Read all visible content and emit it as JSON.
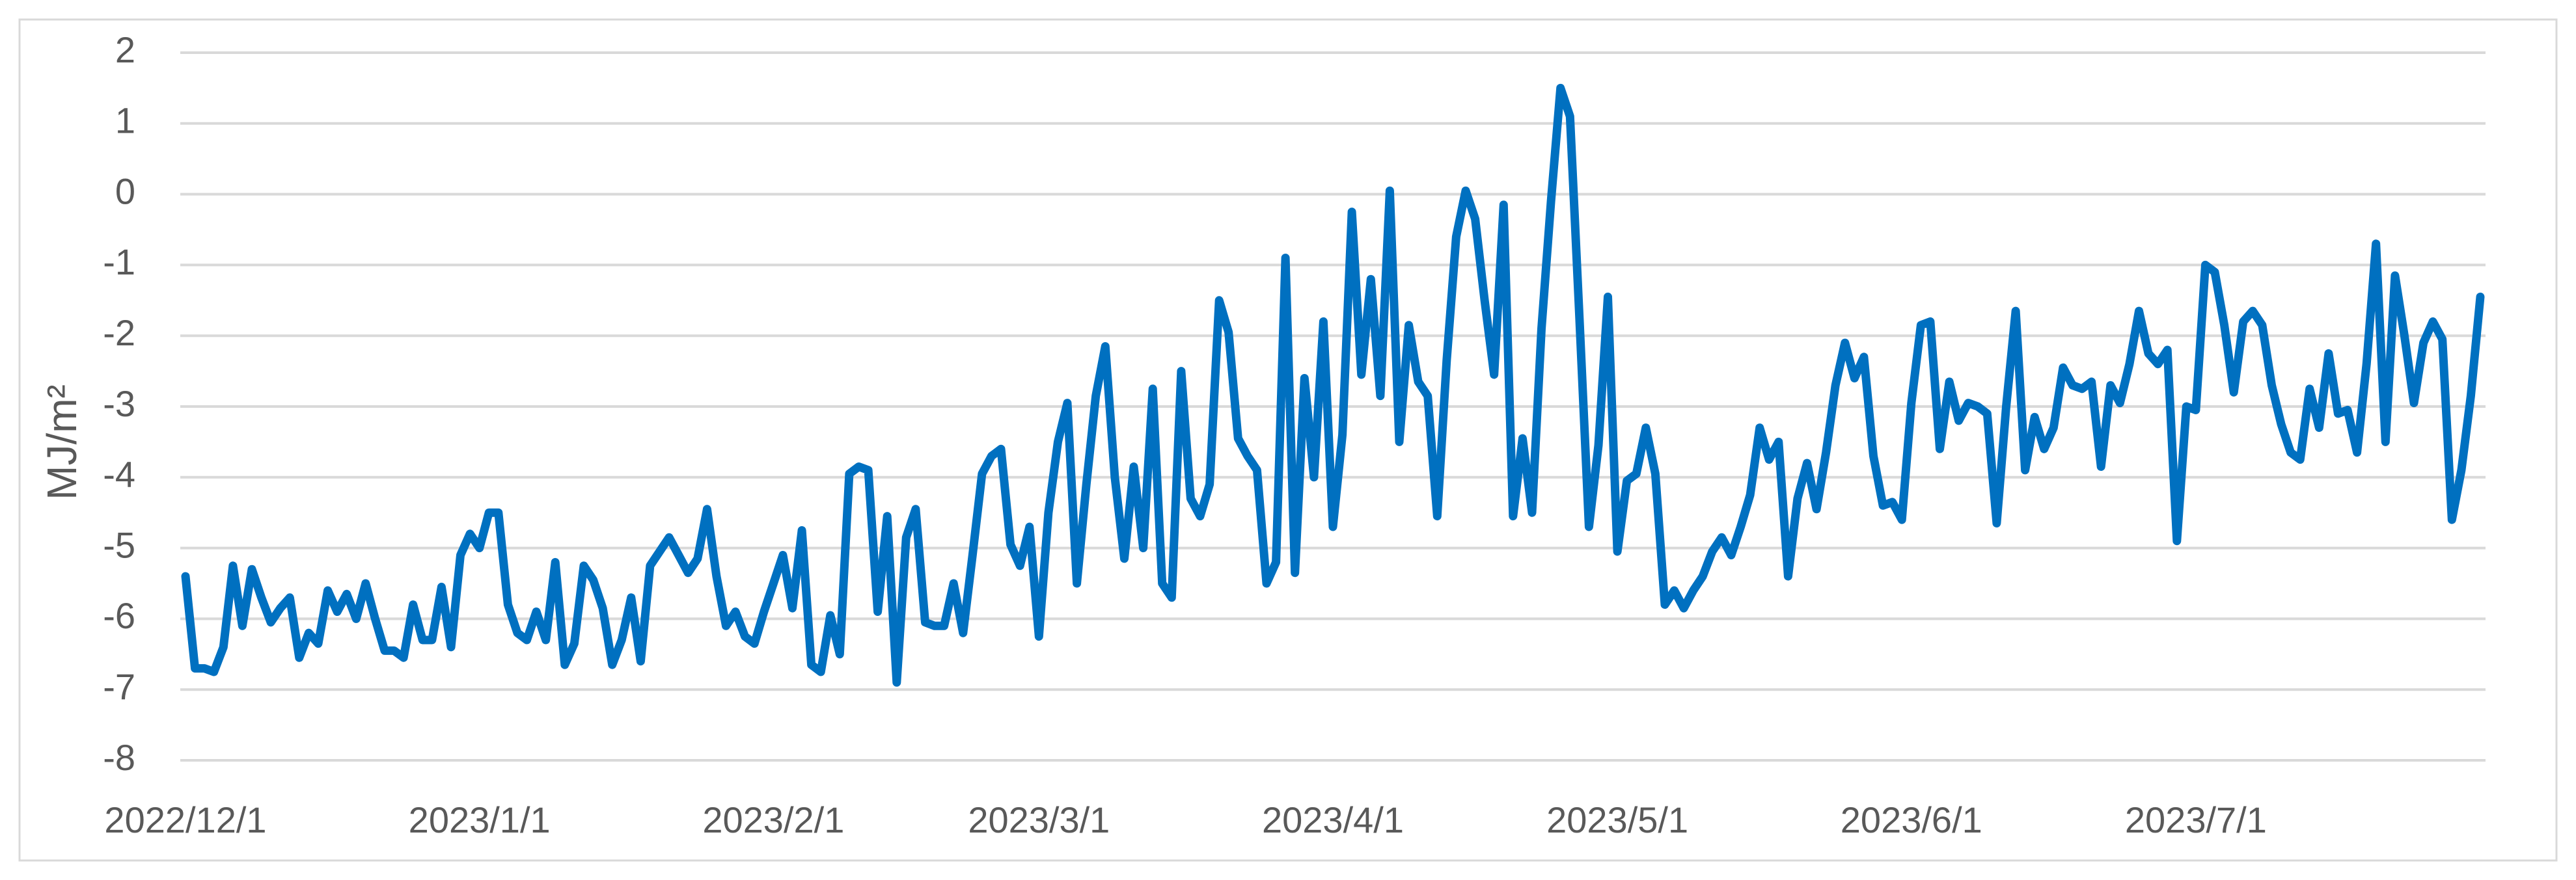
{
  "chart_data": {
    "type": "line",
    "ylabel": "MJ/m²",
    "x": [
      "2022/12/1",
      "2022/12/2",
      "2022/12/3",
      "2022/12/4",
      "2022/12/5",
      "2022/12/6",
      "2022/12/7",
      "2022/12/8",
      "2022/12/9",
      "2022/12/10",
      "2022/12/11",
      "2022/12/12",
      "2022/12/13",
      "2022/12/14",
      "2022/12/15",
      "2022/12/16",
      "2022/12/17",
      "2022/12/18",
      "2022/12/19",
      "2022/12/20",
      "2022/12/21",
      "2022/12/22",
      "2022/12/23",
      "2022/12/24",
      "2022/12/25",
      "2022/12/26",
      "2022/12/27",
      "2022/12/28",
      "2022/12/29",
      "2022/12/30",
      "2022/12/31",
      "2023/1/1",
      "2023/1/2",
      "2023/1/3",
      "2023/1/4",
      "2023/1/5",
      "2023/1/6",
      "2023/1/7",
      "2023/1/8",
      "2023/1/9",
      "2023/1/10",
      "2023/1/11",
      "2023/1/12",
      "2023/1/13",
      "2023/1/14",
      "2023/1/15",
      "2023/1/16",
      "2023/1/17",
      "2023/1/18",
      "2023/1/19",
      "2023/1/20",
      "2023/1/21",
      "2023/1/22",
      "2023/1/23",
      "2023/1/24",
      "2023/1/25",
      "2023/1/26",
      "2023/1/27",
      "2023/1/28",
      "2023/1/29",
      "2023/1/30",
      "2023/1/31",
      "2023/2/1",
      "2023/2/2",
      "2023/2/3",
      "2023/2/4",
      "2023/2/5",
      "2023/2/6",
      "2023/2/7",
      "2023/2/8",
      "2023/2/9",
      "2023/2/10",
      "2023/2/11",
      "2023/2/12",
      "2023/2/13",
      "2023/2/14",
      "2023/2/15",
      "2023/2/16",
      "2023/2/17",
      "2023/2/18",
      "2023/2/19",
      "2023/2/20",
      "2023/2/21",
      "2023/2/22",
      "2023/2/23",
      "2023/2/24",
      "2023/2/25",
      "2023/2/26",
      "2023/2/27",
      "2023/2/28",
      "2023/3/1",
      "2023/3/2",
      "2023/3/3",
      "2023/3/4",
      "2023/3/5",
      "2023/3/6",
      "2023/3/7",
      "2023/3/8",
      "2023/3/9",
      "2023/3/10",
      "2023/3/11",
      "2023/3/12",
      "2023/3/13",
      "2023/3/14",
      "2023/3/15",
      "2023/3/16",
      "2023/3/17",
      "2023/3/18",
      "2023/3/19",
      "2023/3/20",
      "2023/3/21",
      "2023/3/22",
      "2023/3/23",
      "2023/3/24",
      "2023/3/25",
      "2023/3/26",
      "2023/3/27",
      "2023/3/28",
      "2023/3/29",
      "2023/3/30",
      "2023/3/31",
      "2023/4/1",
      "2023/4/2",
      "2023/4/3",
      "2023/4/4",
      "2023/4/5",
      "2023/4/6",
      "2023/4/7",
      "2023/4/8",
      "2023/4/9",
      "2023/4/10",
      "2023/4/11",
      "2023/4/12",
      "2023/4/13",
      "2023/4/14",
      "2023/4/15",
      "2023/4/16",
      "2023/4/17",
      "2023/4/18",
      "2023/4/19",
      "2023/4/20",
      "2023/4/21",
      "2023/4/22",
      "2023/4/23",
      "2023/4/24",
      "2023/4/25",
      "2023/4/26",
      "2023/4/27",
      "2023/4/28",
      "2023/4/29",
      "2023/4/30",
      "2023/5/1",
      "2023/5/2",
      "2023/5/3",
      "2023/5/4",
      "2023/5/5",
      "2023/5/6",
      "2023/5/7",
      "2023/5/8",
      "2023/5/9",
      "2023/5/10",
      "2023/5/11",
      "2023/5/12",
      "2023/5/13",
      "2023/5/14",
      "2023/5/15",
      "2023/5/16",
      "2023/5/17",
      "2023/5/18",
      "2023/5/19",
      "2023/5/20",
      "2023/5/21",
      "2023/5/22",
      "2023/5/23",
      "2023/5/24",
      "2023/5/25",
      "2023/5/26",
      "2023/5/27",
      "2023/5/28",
      "2023/5/29",
      "2023/5/30",
      "2023/5/31",
      "2023/6/1",
      "2023/6/2",
      "2023/6/3",
      "2023/6/4",
      "2023/6/5",
      "2023/6/6",
      "2023/6/7",
      "2023/6/8",
      "2023/6/9",
      "2023/6/10",
      "2023/6/11",
      "2023/6/12",
      "2023/6/13",
      "2023/6/14",
      "2023/6/15",
      "2023/6/16",
      "2023/6/17",
      "2023/6/18",
      "2023/6/19",
      "2023/6/20",
      "2023/6/21",
      "2023/6/22",
      "2023/6/23",
      "2023/6/24",
      "2023/6/25",
      "2023/6/26",
      "2023/6/27",
      "2023/6/28",
      "2023/6/29",
      "2023/6/30",
      "2023/7/1",
      "2023/7/2",
      "2023/7/3",
      "2023/7/4",
      "2023/7/5",
      "2023/7/6",
      "2023/7/7",
      "2023/7/8",
      "2023/7/9",
      "2023/7/10",
      "2023/7/11",
      "2023/7/12",
      "2023/7/13",
      "2023/7/14",
      "2023/7/15",
      "2023/7/16",
      "2023/7/17",
      "2023/7/18",
      "2023/7/19",
      "2023/7/20",
      "2023/7/21",
      "2023/7/22",
      "2023/7/23",
      "2023/7/24",
      "2023/7/25",
      "2023/7/26",
      "2023/7/27",
      "2023/7/28",
      "2023/7/29",
      "2023/7/30",
      "2023/7/31"
    ],
    "values": [
      -5.4,
      -6.7,
      -6.7,
      -6.75,
      -6.4,
      -5.25,
      -6.1,
      -5.3,
      -5.7,
      -6.05,
      -5.85,
      -5.7,
      -6.55,
      -6.2,
      -6.35,
      -5.6,
      -5.9,
      -5.65,
      -6.0,
      -5.5,
      -6.0,
      -6.45,
      -6.45,
      -6.55,
      -5.8,
      -6.3,
      -6.3,
      -5.55,
      -6.4,
      -5.1,
      -4.8,
      -5.0,
      -4.5,
      -4.5,
      -5.8,
      -6.2,
      -6.3,
      -5.9,
      -6.3,
      -5.2,
      -6.65,
      -6.35,
      -5.25,
      -5.45,
      -5.85,
      -6.65,
      -6.3,
      -5.7,
      -6.6,
      -5.25,
      -5.05,
      -4.85,
      -5.1,
      -5.35,
      -5.15,
      -4.45,
      -5.4,
      -6.1,
      -5.9,
      -6.25,
      -6.35,
      -5.9,
      -5.5,
      -5.1,
      -5.85,
      -4.75,
      -6.65,
      -6.75,
      -5.95,
      -6.5,
      -3.95,
      -3.85,
      -3.9,
      -5.9,
      -4.55,
      -6.9,
      -4.85,
      -4.45,
      -6.05,
      -6.1,
      -6.1,
      -5.5,
      -6.2,
      -5.1,
      -3.95,
      -3.7,
      -3.6,
      -4.95,
      -5.25,
      -4.7,
      -6.25,
      -4.5,
      -3.5,
      -2.95,
      -5.5,
      -4.1,
      -2.85,
      -2.15,
      -4.0,
      -5.15,
      -3.85,
      -5.0,
      -2.75,
      -5.5,
      -5.7,
      -2.5,
      -4.3,
      -4.55,
      -4.1,
      -1.5,
      -1.95,
      -3.45,
      -3.7,
      -3.9,
      -5.5,
      -5.2,
      -0.9,
      -5.35,
      -2.6,
      -4.0,
      -1.8,
      -4.7,
      -3.4,
      -0.25,
      -2.55,
      -1.2,
      -2.85,
      0.05,
      -3.5,
      -1.85,
      -2.65,
      -2.85,
      -4.55,
      -2.35,
      -0.6,
      0.05,
      -0.35,
      -1.5,
      -2.55,
      -0.15,
      -4.55,
      -3.45,
      -4.5,
      -1.9,
      -0.1,
      1.5,
      1.1,
      -1.75,
      -4.7,
      -3.55,
      -1.45,
      -5.05,
      -4.05,
      -3.95,
      -3.3,
      -3.95,
      -5.8,
      -5.6,
      -5.85,
      -5.6,
      -5.4,
      -5.05,
      -4.85,
      -5.1,
      -4.7,
      -4.25,
      -3.3,
      -3.75,
      -3.5,
      -5.4,
      -4.3,
      -3.8,
      -4.45,
      -3.65,
      -2.7,
      -2.1,
      -2.6,
      -2.3,
      -3.7,
      -4.4,
      -4.35,
      -4.6,
      -2.95,
      -1.85,
      -1.8,
      -3.6,
      -2.65,
      -3.2,
      -2.95,
      -3.0,
      -3.1,
      -4.65,
      -3.0,
      -1.65,
      -3.9,
      -3.15,
      -3.6,
      -3.3,
      -2.45,
      -2.7,
      -2.75,
      -2.65,
      -3.85,
      -2.7,
      -2.95,
      -2.4,
      -1.65,
      -2.25,
      -2.4,
      -2.2,
      -4.9,
      -3.0,
      -3.05,
      -1.0,
      -1.1,
      -1.85,
      -2.8,
      -1.8,
      -1.65,
      -1.85,
      -2.7,
      -3.25,
      -3.65,
      -3.75,
      -2.75,
      -3.3,
      -2.25,
      -3.1,
      -3.05,
      -3.65,
      -2.4,
      -0.7,
      -3.5,
      -1.15,
      -2.0,
      -2.95,
      -2.1,
      -1.8,
      -2.05,
      -4.6,
      -3.9,
      -2.85,
      -1.45
    ],
    "color": "#0070c0",
    "xlim": [
      "2022/12/1",
      "2023/7/31"
    ],
    "xticks": [
      "2022/12/1",
      "2023/1/1",
      "2023/2/1",
      "2023/3/1",
      "2023/4/1",
      "2023/5/1",
      "2023/6/1",
      "2023/7/1"
    ],
    "ylim": [
      -8,
      2
    ],
    "yticks": [
      -8,
      -7,
      -6,
      -5,
      -4,
      -3,
      -2,
      -1,
      0,
      1,
      2
    ],
    "grid": true
  }
}
